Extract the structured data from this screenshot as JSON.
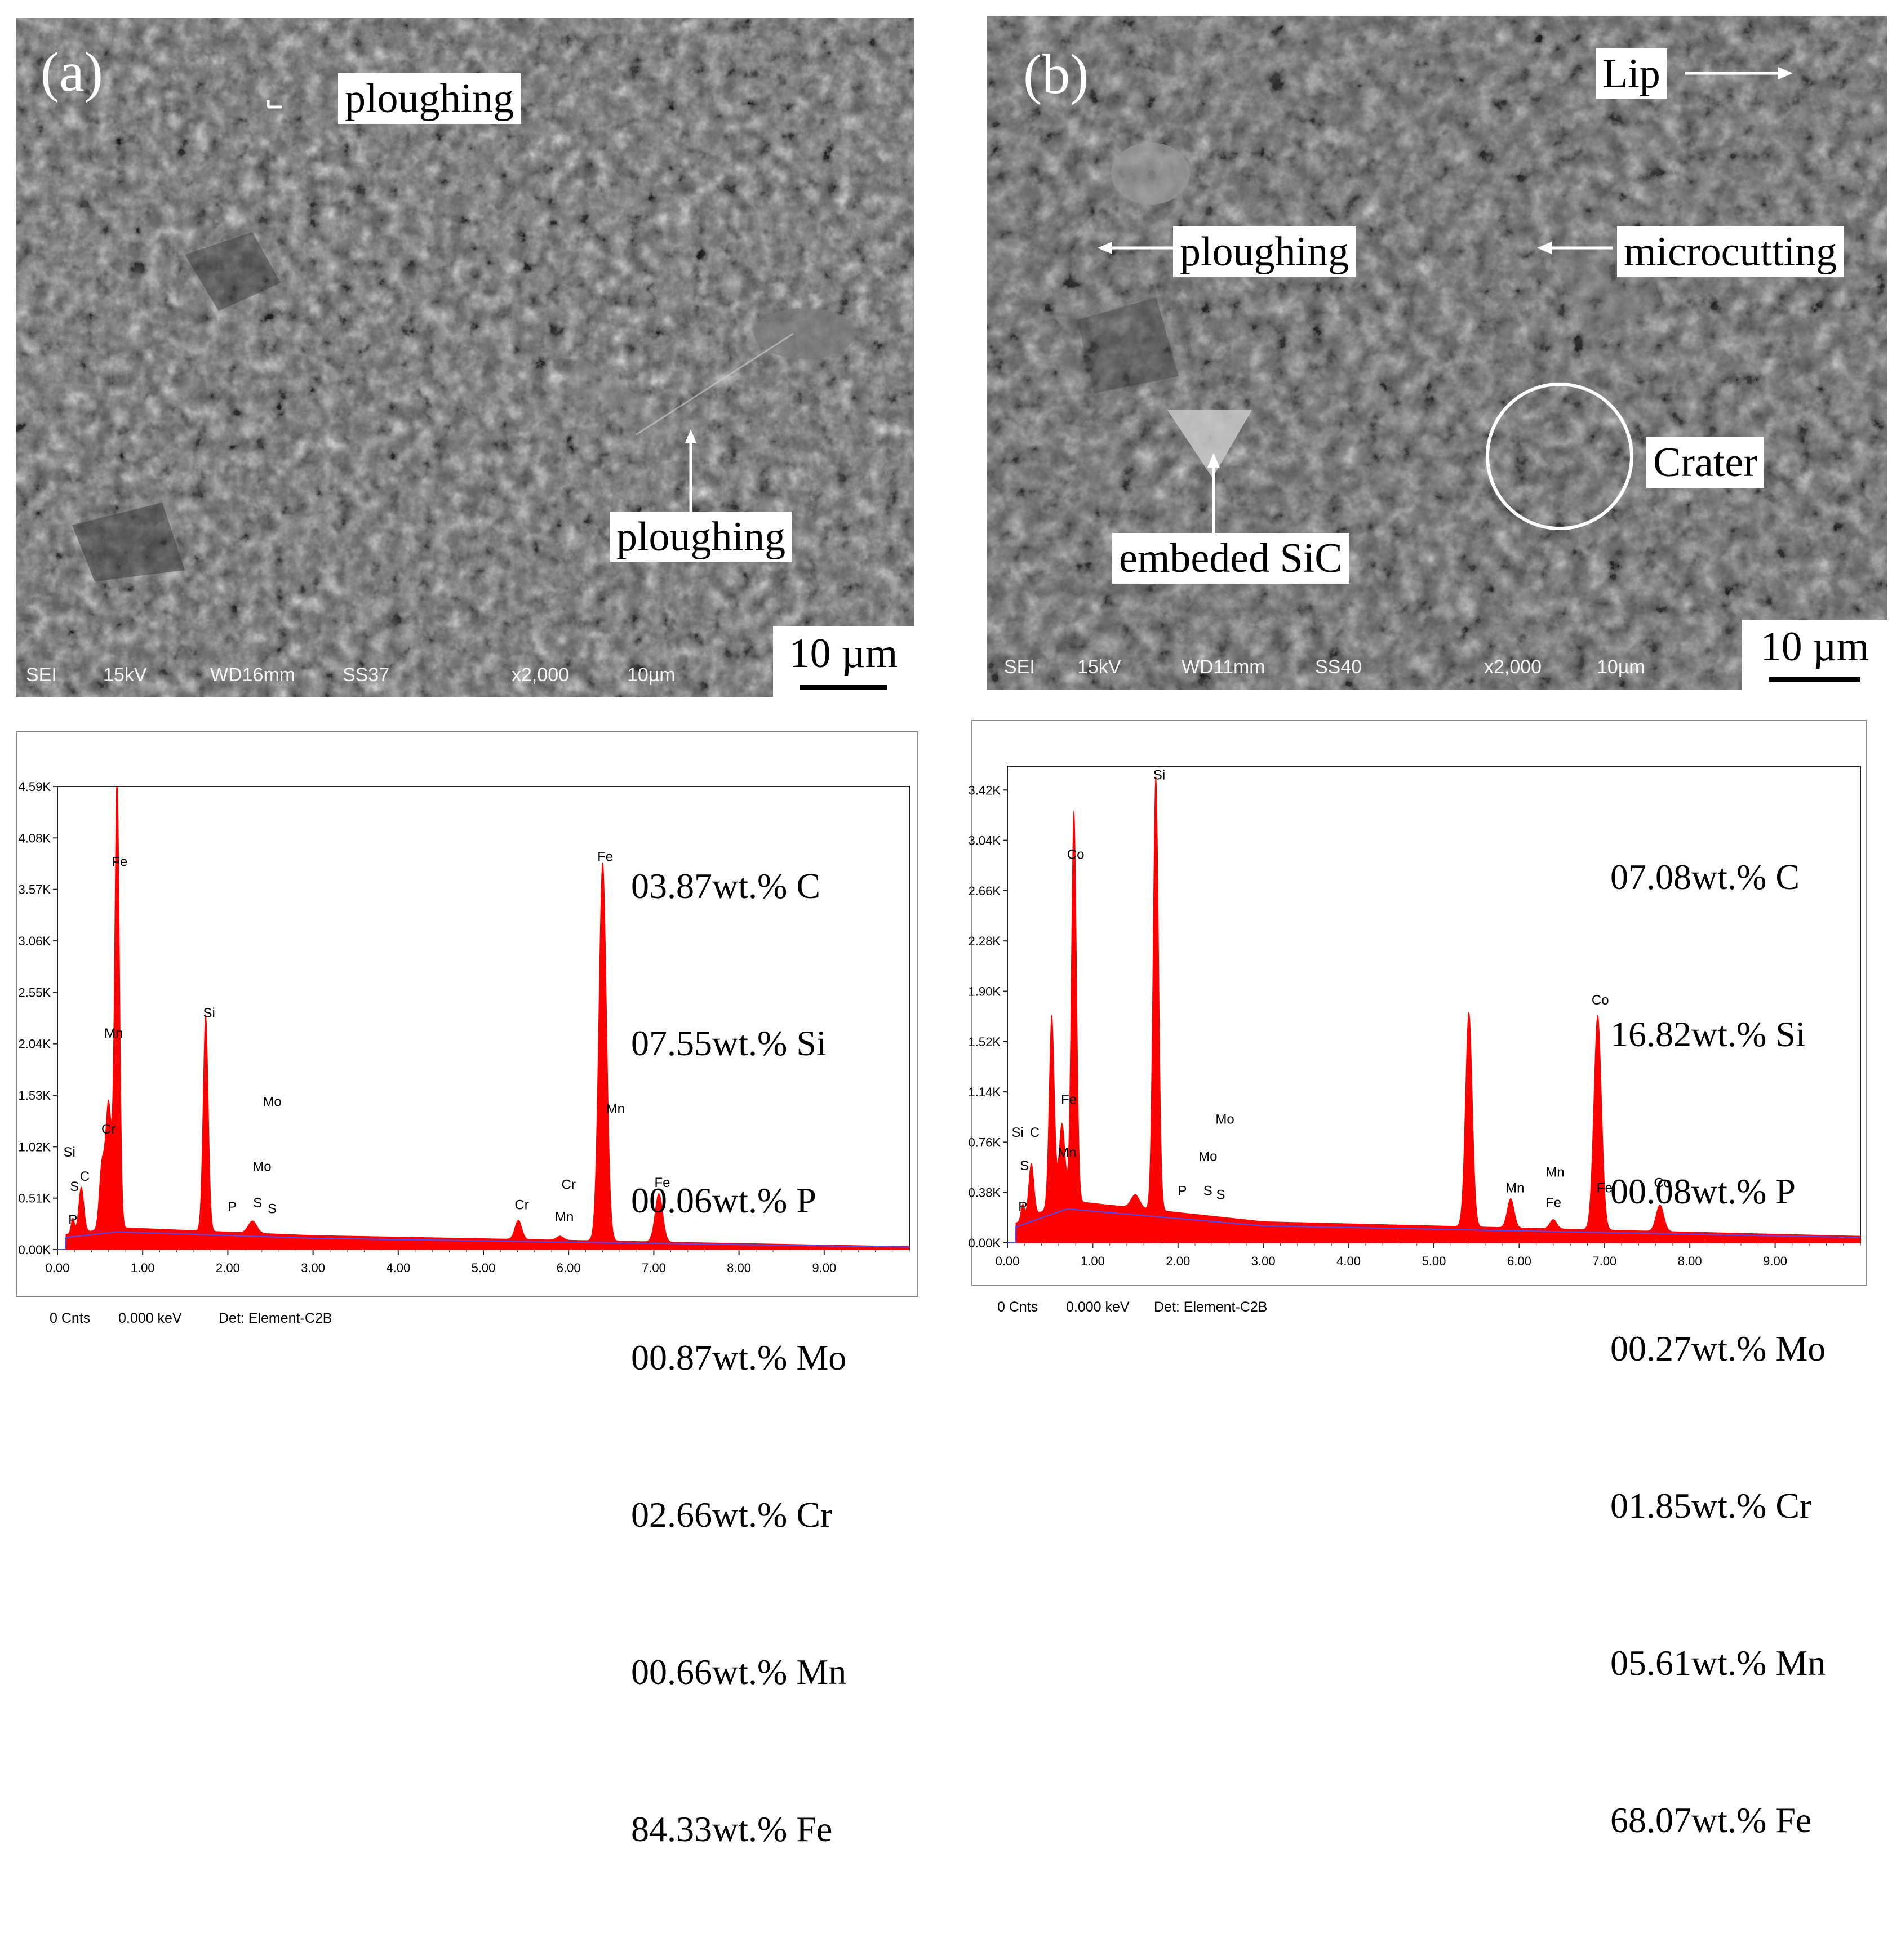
{
  "panel_a": {
    "letter": "(a)",
    "labels": [
      "ploughing",
      "ploughing"
    ],
    "infobar": [
      "SEI",
      "15kV",
      "WD16mm",
      "SS37",
      "x2,000",
      "10µm"
    ],
    "scale_label": "10 µm"
  },
  "panel_b": {
    "letter": "(b)",
    "labels": [
      "Lip",
      "ploughing",
      "microcutting",
      "Crater",
      "embeded SiC"
    ],
    "infobar": [
      "SEI",
      "15kV",
      "WD11mm",
      "SS40",
      "x2,000",
      "10µm"
    ],
    "scale_label": "10 µm"
  },
  "colors": {
    "spectrum_fill": "#ff0000",
    "baseline": "#4a4aff",
    "sem_gray": "#5e5e5e"
  },
  "chart_data": [
    {
      "type": "area",
      "xlabel": "",
      "ylabel": "",
      "xlim": [
        0,
        10
      ],
      "ylim": [
        0,
        4.59
      ],
      "x_ticks": [
        "0.00",
        "1.00",
        "2.00",
        "3.00",
        "4.00",
        "5.00",
        "6.00",
        "7.00",
        "8.00",
        "9.00"
      ],
      "y_ticks": [
        "0.00K",
        "0.51K",
        "1.02K",
        "1.53K",
        "2.04K",
        "2.55K",
        "3.06K",
        "3.57K",
        "4.08K",
        "4.59K"
      ],
      "y_tick_values": [
        0,
        0.51,
        1.02,
        1.53,
        2.04,
        2.55,
        3.06,
        3.57,
        4.08,
        4.59
      ],
      "peaks": [
        {
          "x": 0.18,
          "h": 0.15,
          "w": 0.02
        },
        {
          "x": 0.28,
          "h": 0.45,
          "w": 0.03
        },
        {
          "x": 0.52,
          "h": 0.6,
          "w": 0.03
        },
        {
          "x": 0.6,
          "h": 1.25,
          "w": 0.035
        },
        {
          "x": 0.7,
          "h": 4.5,
          "w": 0.028
        },
        {
          "x": 1.74,
          "h": 2.15,
          "w": 0.03
        },
        {
          "x": 2.29,
          "h": 0.12,
          "w": 0.05
        },
        {
          "x": 5.41,
          "h": 0.19,
          "w": 0.04
        },
        {
          "x": 5.9,
          "h": 0.04,
          "w": 0.04
        },
        {
          "x": 6.4,
          "h": 3.75,
          "w": 0.045
        },
        {
          "x": 7.06,
          "h": 0.48,
          "w": 0.045
        }
      ],
      "background": {
        "start": 0.15,
        "peak": 0.22,
        "mid": 0.14,
        "end": 0.03
      },
      "peak_labels": [
        {
          "text": "P",
          "x": 0.18,
          "y": 0.25
        },
        {
          "text": "S",
          "x": 0.2,
          "y": 0.58
        },
        {
          "text": "Si",
          "x": 0.14,
          "y": 0.92
        },
        {
          "text": "C",
          "x": 0.32,
          "y": 0.68
        },
        {
          "text": "Cr",
          "x": 0.6,
          "y": 1.15
        },
        {
          "text": "Mn",
          "x": 0.66,
          "y": 2.1
        },
        {
          "text": "Fe",
          "x": 0.73,
          "y": 3.8
        },
        {
          "text": "Si",
          "x": 1.78,
          "y": 2.3
        },
        {
          "text": "P",
          "x": 2.05,
          "y": 0.38
        },
        {
          "text": "S",
          "x": 2.35,
          "y": 0.42
        },
        {
          "text": "S",
          "x": 2.52,
          "y": 0.36
        },
        {
          "text": "Mo",
          "x": 2.4,
          "y": 0.78
        },
        {
          "text": "Mo",
          "x": 2.52,
          "y": 1.42
        },
        {
          "text": "Cr",
          "x": 5.45,
          "y": 0.4
        },
        {
          "text": "Mn",
          "x": 5.95,
          "y": 0.28
        },
        {
          "text": "Cr",
          "x": 6.0,
          "y": 0.6
        },
        {
          "text": "Fe",
          "x": 6.43,
          "y": 3.85
        },
        {
          "text": "Mn",
          "x": 6.55,
          "y": 1.35
        },
        {
          "text": "Fe",
          "x": 7.1,
          "y": 0.62
        }
      ],
      "composition": [
        "03.87wt.% C",
        "07.55wt.% Si",
        "00.06wt.% P",
        "00.87wt.% Mo",
        "02.66wt.% Cr",
        "00.66wt.% Mn",
        "84.33wt.% Fe"
      ],
      "footer": [
        "0 Cnts",
        "0.000 keV",
        "Det: Element-C2B"
      ]
    },
    {
      "type": "area",
      "xlabel": "",
      "ylabel": "",
      "xlim": [
        0,
        10
      ],
      "ylim": [
        0,
        3.6
      ],
      "x_ticks": [
        "0.00",
        "1.00",
        "2.00",
        "3.00",
        "4.00",
        "5.00",
        "6.00",
        "7.00",
        "8.00",
        "9.00"
      ],
      "y_ticks": [
        "0.00K",
        "0.38K",
        "0.76K",
        "1.14K",
        "1.52K",
        "1.90K",
        "2.28K",
        "2.66K",
        "3.04K",
        "3.42K"
      ],
      "y_tick_values": [
        0,
        0.38,
        0.76,
        1.14,
        1.52,
        1.9,
        2.28,
        2.66,
        3.04,
        3.42
      ],
      "peaks": [
        {
          "x": 0.18,
          "h": 0.12,
          "w": 0.02
        },
        {
          "x": 0.28,
          "h": 0.4,
          "w": 0.03
        },
        {
          "x": 0.52,
          "h": 1.45,
          "w": 0.03
        },
        {
          "x": 0.64,
          "h": 0.6,
          "w": 0.035
        },
        {
          "x": 0.78,
          "h": 2.95,
          "w": 0.03
        },
        {
          "x": 1.5,
          "h": 0.1,
          "w": 0.05
        },
        {
          "x": 1.74,
          "h": 3.28,
          "w": 0.032
        },
        {
          "x": 5.41,
          "h": 1.62,
          "w": 0.04
        },
        {
          "x": 5.9,
          "h": 0.22,
          "w": 0.04
        },
        {
          "x": 6.4,
          "h": 0.07,
          "w": 0.04
        },
        {
          "x": 6.92,
          "h": 1.62,
          "w": 0.045
        },
        {
          "x": 7.65,
          "h": 0.2,
          "w": 0.045
        }
      ],
      "background": {
        "start": 0.15,
        "peak": 0.32,
        "mid": 0.16,
        "end": 0.05
      },
      "peak_labels": [
        {
          "text": "P",
          "x": 0.18,
          "y": 0.24
        },
        {
          "text": "S",
          "x": 0.2,
          "y": 0.55
        },
        {
          "text": "Si",
          "x": 0.12,
          "y": 0.8
        },
        {
          "text": "C",
          "x": 0.32,
          "y": 0.8
        },
        {
          "text": "Mn",
          "x": 0.7,
          "y": 0.65
        },
        {
          "text": "Fe",
          "x": 0.72,
          "y": 1.05
        },
        {
          "text": "Co",
          "x": 0.8,
          "y": 2.9
        },
        {
          "text": "Si",
          "x": 1.78,
          "y": 3.5
        },
        {
          "text": "P",
          "x": 2.05,
          "y": 0.36
        },
        {
          "text": "S",
          "x": 2.35,
          "y": 0.36
        },
        {
          "text": "S",
          "x": 2.5,
          "y": 0.33
        },
        {
          "text": "Mo",
          "x": 2.35,
          "y": 0.62
        },
        {
          "text": "Mo",
          "x": 2.55,
          "y": 0.9
        },
        {
          "text": "Mn",
          "x": 5.95,
          "y": 0.38
        },
        {
          "text": "Fe",
          "x": 6.4,
          "y": 0.27
        },
        {
          "text": "Mn",
          "x": 6.42,
          "y": 0.5
        },
        {
          "text": "Fe",
          "x": 7.0,
          "y": 0.38
        },
        {
          "text": "Co",
          "x": 6.95,
          "y": 1.8
        },
        {
          "text": "Co",
          "x": 7.68,
          "y": 0.42
        }
      ],
      "composition": [
        "07.08wt.% C",
        "16.82wt.% Si",
        "00.08wt.% P",
        "00.27wt.% Mo",
        "01.85wt.% Cr",
        "05.61wt.% Mn",
        "68.07wt.% Fe"
      ],
      "footer": [
        "0 Cnts",
        "0.000 keV",
        "Det: Element-C2B"
      ]
    }
  ]
}
